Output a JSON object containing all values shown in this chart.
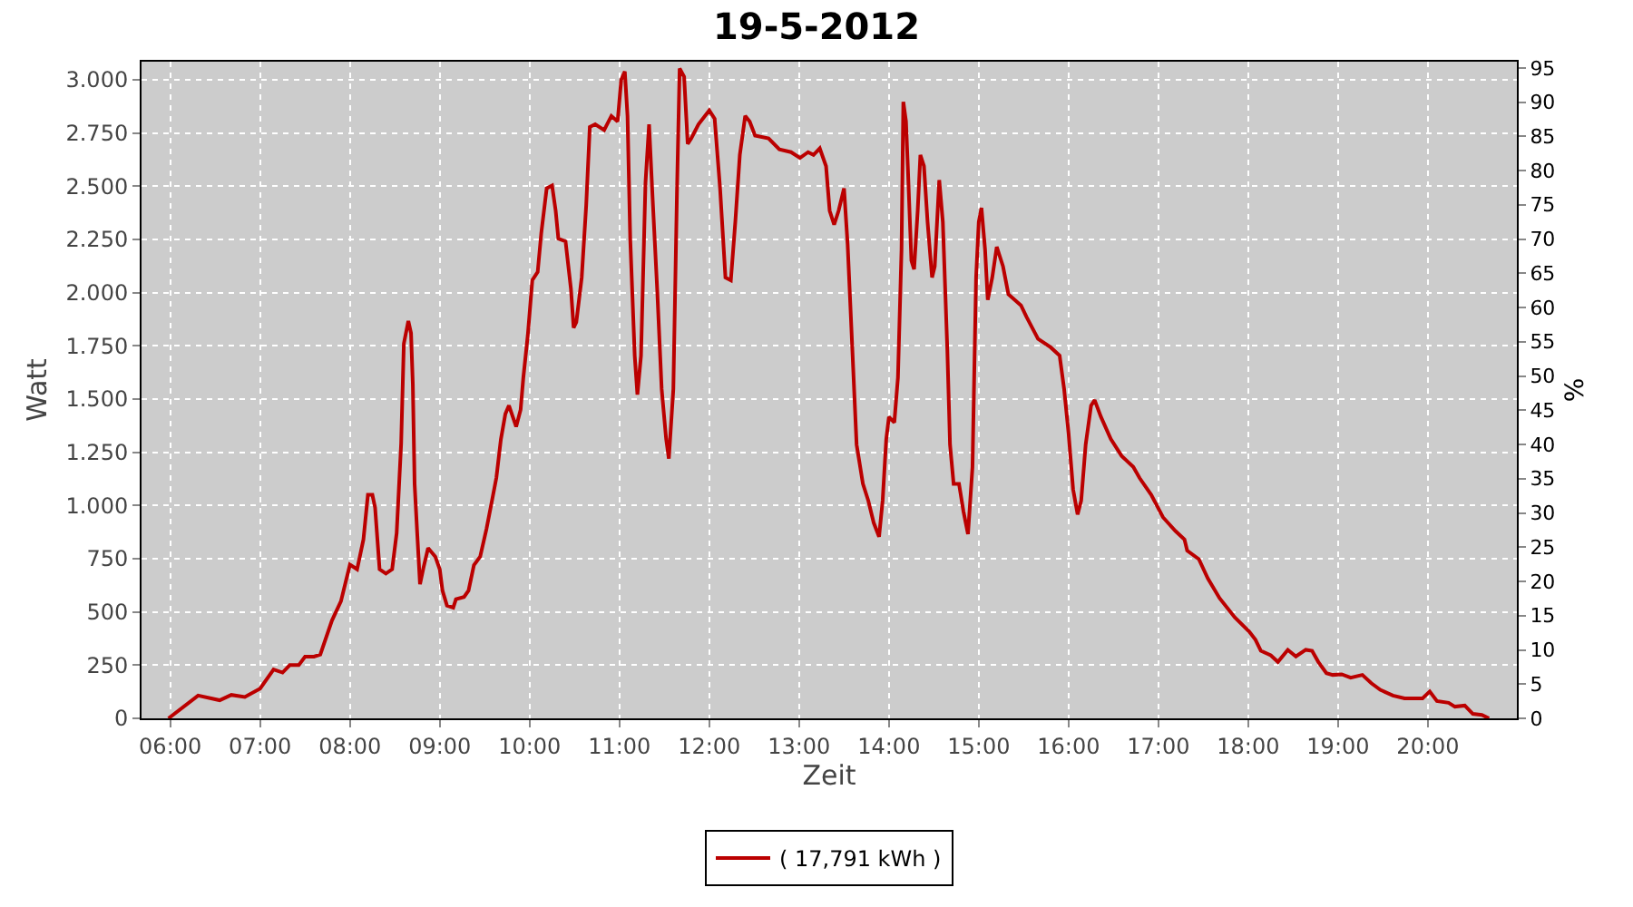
{
  "chart_data": {
    "type": "line",
    "title": "19-5-2012",
    "xlabel": "Zeit",
    "ylabel": "Watt",
    "y2label": "%",
    "xlim": [
      5.68,
      20.99
    ],
    "xticks": [
      {
        "value": 6,
        "label": "06:00"
      },
      {
        "value": 7,
        "label": "07:00"
      },
      {
        "value": 8,
        "label": "08:00"
      },
      {
        "value": 9,
        "label": "09:00"
      },
      {
        "value": 10,
        "label": "10:00"
      },
      {
        "value": 11,
        "label": "11:00"
      },
      {
        "value": 12,
        "label": "12:00"
      },
      {
        "value": 13,
        "label": "13:00"
      },
      {
        "value": 14,
        "label": "14:00"
      },
      {
        "value": 15,
        "label": "15:00"
      },
      {
        "value": 16,
        "label": "16:00"
      },
      {
        "value": 17,
        "label": "17:00"
      },
      {
        "value": 18,
        "label": "18:00"
      },
      {
        "value": 19,
        "label": "19:00"
      },
      {
        "value": 20,
        "label": "20:00"
      }
    ],
    "ylim": [
      0,
      3085
    ],
    "yticks": [
      0,
      250,
      500,
      750,
      {
        "value": 1000,
        "label": "1.000"
      },
      {
        "value": 1250,
        "label": "1.250"
      },
      {
        "value": 1500,
        "label": "1.500"
      },
      {
        "value": 1750,
        "label": "1.750"
      },
      {
        "value": 2000,
        "label": "2.000"
      },
      {
        "value": 2250,
        "label": "2.250"
      },
      {
        "value": 2500,
        "label": "2.500"
      },
      {
        "value": 2750,
        "label": "2.750"
      },
      {
        "value": 3000,
        "label": "3.000"
      }
    ],
    "y2lim": [
      0,
      95.9
    ],
    "y2ticks": [
      0,
      5,
      10,
      15,
      20,
      25,
      30,
      35,
      40,
      45,
      50,
      55,
      60,
      65,
      70,
      75,
      80,
      85,
      90,
      95
    ],
    "grid": true,
    "legend": "bottom",
    "marker": "none",
    "line_style": "solid",
    "series": [
      {
        "name": "( 17,791 kWh )",
        "color": "#bb0000",
        "x": [
          5.98,
          6.31,
          6.55,
          6.68,
          6.83,
          7.0,
          7.15,
          7.25,
          7.33,
          7.43,
          7.5,
          7.6,
          7.67,
          7.8,
          7.9,
          8.0,
          8.08,
          8.15,
          8.2,
          8.25,
          8.28,
          8.33,
          8.4,
          8.47,
          8.52,
          8.57,
          8.6,
          8.65,
          8.68,
          8.7,
          8.72,
          8.75,
          8.78,
          8.82,
          8.87,
          8.95,
          9.0,
          9.03,
          9.08,
          9.15,
          9.18,
          9.27,
          9.32,
          9.38,
          9.45,
          9.52,
          9.58,
          9.63,
          9.68,
          9.73,
          9.77,
          9.85,
          9.9,
          9.93,
          9.98,
          10.03,
          10.09,
          10.13,
          10.19,
          10.25,
          10.29,
          10.32,
          10.4,
          10.46,
          10.49,
          10.52,
          10.58,
          10.63,
          10.67,
          10.73,
          10.83,
          10.91,
          10.98,
          11.02,
          11.06,
          11.09,
          11.12,
          11.17,
          11.2,
          11.24,
          11.29,
          11.33,
          11.37,
          11.42,
          11.47,
          11.52,
          11.55,
          11.6,
          11.64,
          11.67,
          11.72,
          11.76,
          11.8,
          11.88,
          12.0,
          12.06,
          12.12,
          12.18,
          12.24,
          12.29,
          12.34,
          12.4,
          12.45,
          12.51,
          12.66,
          12.78,
          12.91,
          13.01,
          13.1,
          13.16,
          13.23,
          13.3,
          13.34,
          13.39,
          13.44,
          13.5,
          13.54,
          13.59,
          13.64,
          13.71,
          13.77,
          13.83,
          13.89,
          13.93,
          13.97,
          14.0,
          14.06,
          14.1,
          14.14,
          14.16,
          14.19,
          14.21,
          14.25,
          14.28,
          14.32,
          14.35,
          14.39,
          14.43,
          14.48,
          14.51,
          14.56,
          14.6,
          14.65,
          14.68,
          14.72,
          14.78,
          14.83,
          14.88,
          14.93,
          14.97,
          15.0,
          15.03,
          15.07,
          15.1,
          15.15,
          15.2,
          15.27,
          15.33,
          15.47,
          15.53,
          15.66,
          15.8,
          15.9,
          15.95,
          16.0,
          16.05,
          16.1,
          16.14,
          16.19,
          16.25,
          16.29,
          16.36,
          16.47,
          16.59,
          16.72,
          16.79,
          16.92,
          17.05,
          17.19,
          17.29,
          17.32,
          17.45,
          17.55,
          17.68,
          17.85,
          18.01,
          18.08,
          18.14,
          18.25,
          18.33,
          18.44,
          18.53,
          18.64,
          18.71,
          18.78,
          18.87,
          18.94,
          19.04,
          19.14,
          19.27,
          19.37,
          19.47,
          19.61,
          19.74,
          19.94,
          20.02,
          20.1,
          20.23,
          20.3,
          20.41,
          20.5,
          20.6,
          20.68
        ],
        "values": [
          0,
          107,
          85,
          110,
          100,
          140,
          230,
          215,
          250,
          250,
          290,
          290,
          300,
          460,
          550,
          722,
          700,
          840,
          1050,
          1050,
          990,
          700,
          680,
          700,
          870,
          1290,
          1760,
          1867,
          1810,
          1570,
          1100,
          860,
          630,
          710,
          800,
          760,
          700,
          600,
          530,
          520,
          560,
          570,
          600,
          720,
          760,
          890,
          1020,
          1130,
          1310,
          1430,
          1470,
          1370,
          1450,
          1600,
          1800,
          2058,
          2097,
          2280,
          2490,
          2503,
          2385,
          2254,
          2241,
          2018,
          1835,
          1861,
          2071,
          2411,
          2778,
          2791,
          2764,
          2830,
          2804,
          3000,
          3039,
          2830,
          2254,
          1704,
          1521,
          1704,
          2516,
          2791,
          2437,
          2018,
          1547,
          1312,
          1220,
          1547,
          2463,
          3053,
          3014,
          2699,
          2725,
          2791,
          2856,
          2817,
          2490,
          2071,
          2058,
          2332,
          2647,
          2830,
          2804,
          2738,
          2725,
          2673,
          2660,
          2633,
          2660,
          2647,
          2678,
          2594,
          2385,
          2319,
          2385,
          2490,
          2228,
          1757,
          1286,
          1102,
          1023,
          919,
          853,
          1023,
          1312,
          1416,
          1390,
          1600,
          2202,
          2896,
          2804,
          2594,
          2150,
          2110,
          2385,
          2647,
          2594,
          2332,
          2071,
          2123,
          2529,
          2332,
          1730,
          1286,
          1102,
          1102,
          971,
          866,
          1181,
          2071,
          2332,
          2398,
          2202,
          1966,
          2071,
          2215,
          2123,
          1992,
          1940,
          1887,
          1783,
          1743,
          1704,
          1547,
          1338,
          1076,
          958,
          1023,
          1286,
          1469,
          1495,
          1416,
          1312,
          1233,
          1181,
          1129,
          1050,
          945,
          880,
          840,
          788,
          748,
          657,
          565,
          474,
          408,
          369,
          317,
          296,
          265,
          322,
          291,
          322,
          317,
          265,
          212,
          204,
          207,
          191,
          204,
          165,
          134,
          107,
          94,
          94,
          126,
          81,
          73,
          55,
          60,
          21,
          16,
          0
        ]
      }
    ]
  }
}
